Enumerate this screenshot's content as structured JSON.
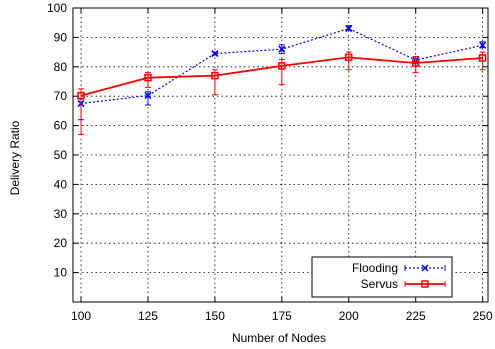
{
  "chart_data": {
    "type": "line",
    "title": "",
    "xlabel": "Number of Nodes",
    "ylabel": "Delivery Ratio",
    "x": [
      100,
      125,
      150,
      175,
      200,
      225,
      250
    ],
    "x_ticks": [
      "100",
      "125",
      "150",
      "175",
      "200",
      "225",
      "250"
    ],
    "y_ticks": [
      "10",
      "20",
      "30",
      "40",
      "50",
      "60",
      "70",
      "80",
      "90",
      "100"
    ],
    "xlim": [
      97,
      252
    ],
    "ylim": [
      0,
      100
    ],
    "grid": true,
    "legend_position": "bottom-right",
    "series": [
      {
        "name": "Flooding",
        "color": "#0000ff",
        "line_style": "dotted",
        "marker": "x",
        "values": [
          67.5,
          70.2,
          84.5,
          86,
          93,
          82.3,
          87.3
        ],
        "err_low": [
          62,
          67,
          84,
          84.5,
          92.5,
          81,
          86.5
        ],
        "err_high": [
          69,
          71.5,
          85,
          87.5,
          94,
          83.5,
          88.5
        ]
      },
      {
        "name": "Servus",
        "color": "#ff0000",
        "line_style": "solid",
        "marker": "square",
        "values": [
          70.2,
          76.3,
          77,
          80.3,
          83.2,
          81.3,
          83
        ],
        "err_low": [
          57,
          73,
          70.5,
          74,
          79,
          78,
          79
        ],
        "err_high": [
          72.5,
          78,
          79,
          82.5,
          85,
          83.5,
          85
        ]
      }
    ]
  }
}
